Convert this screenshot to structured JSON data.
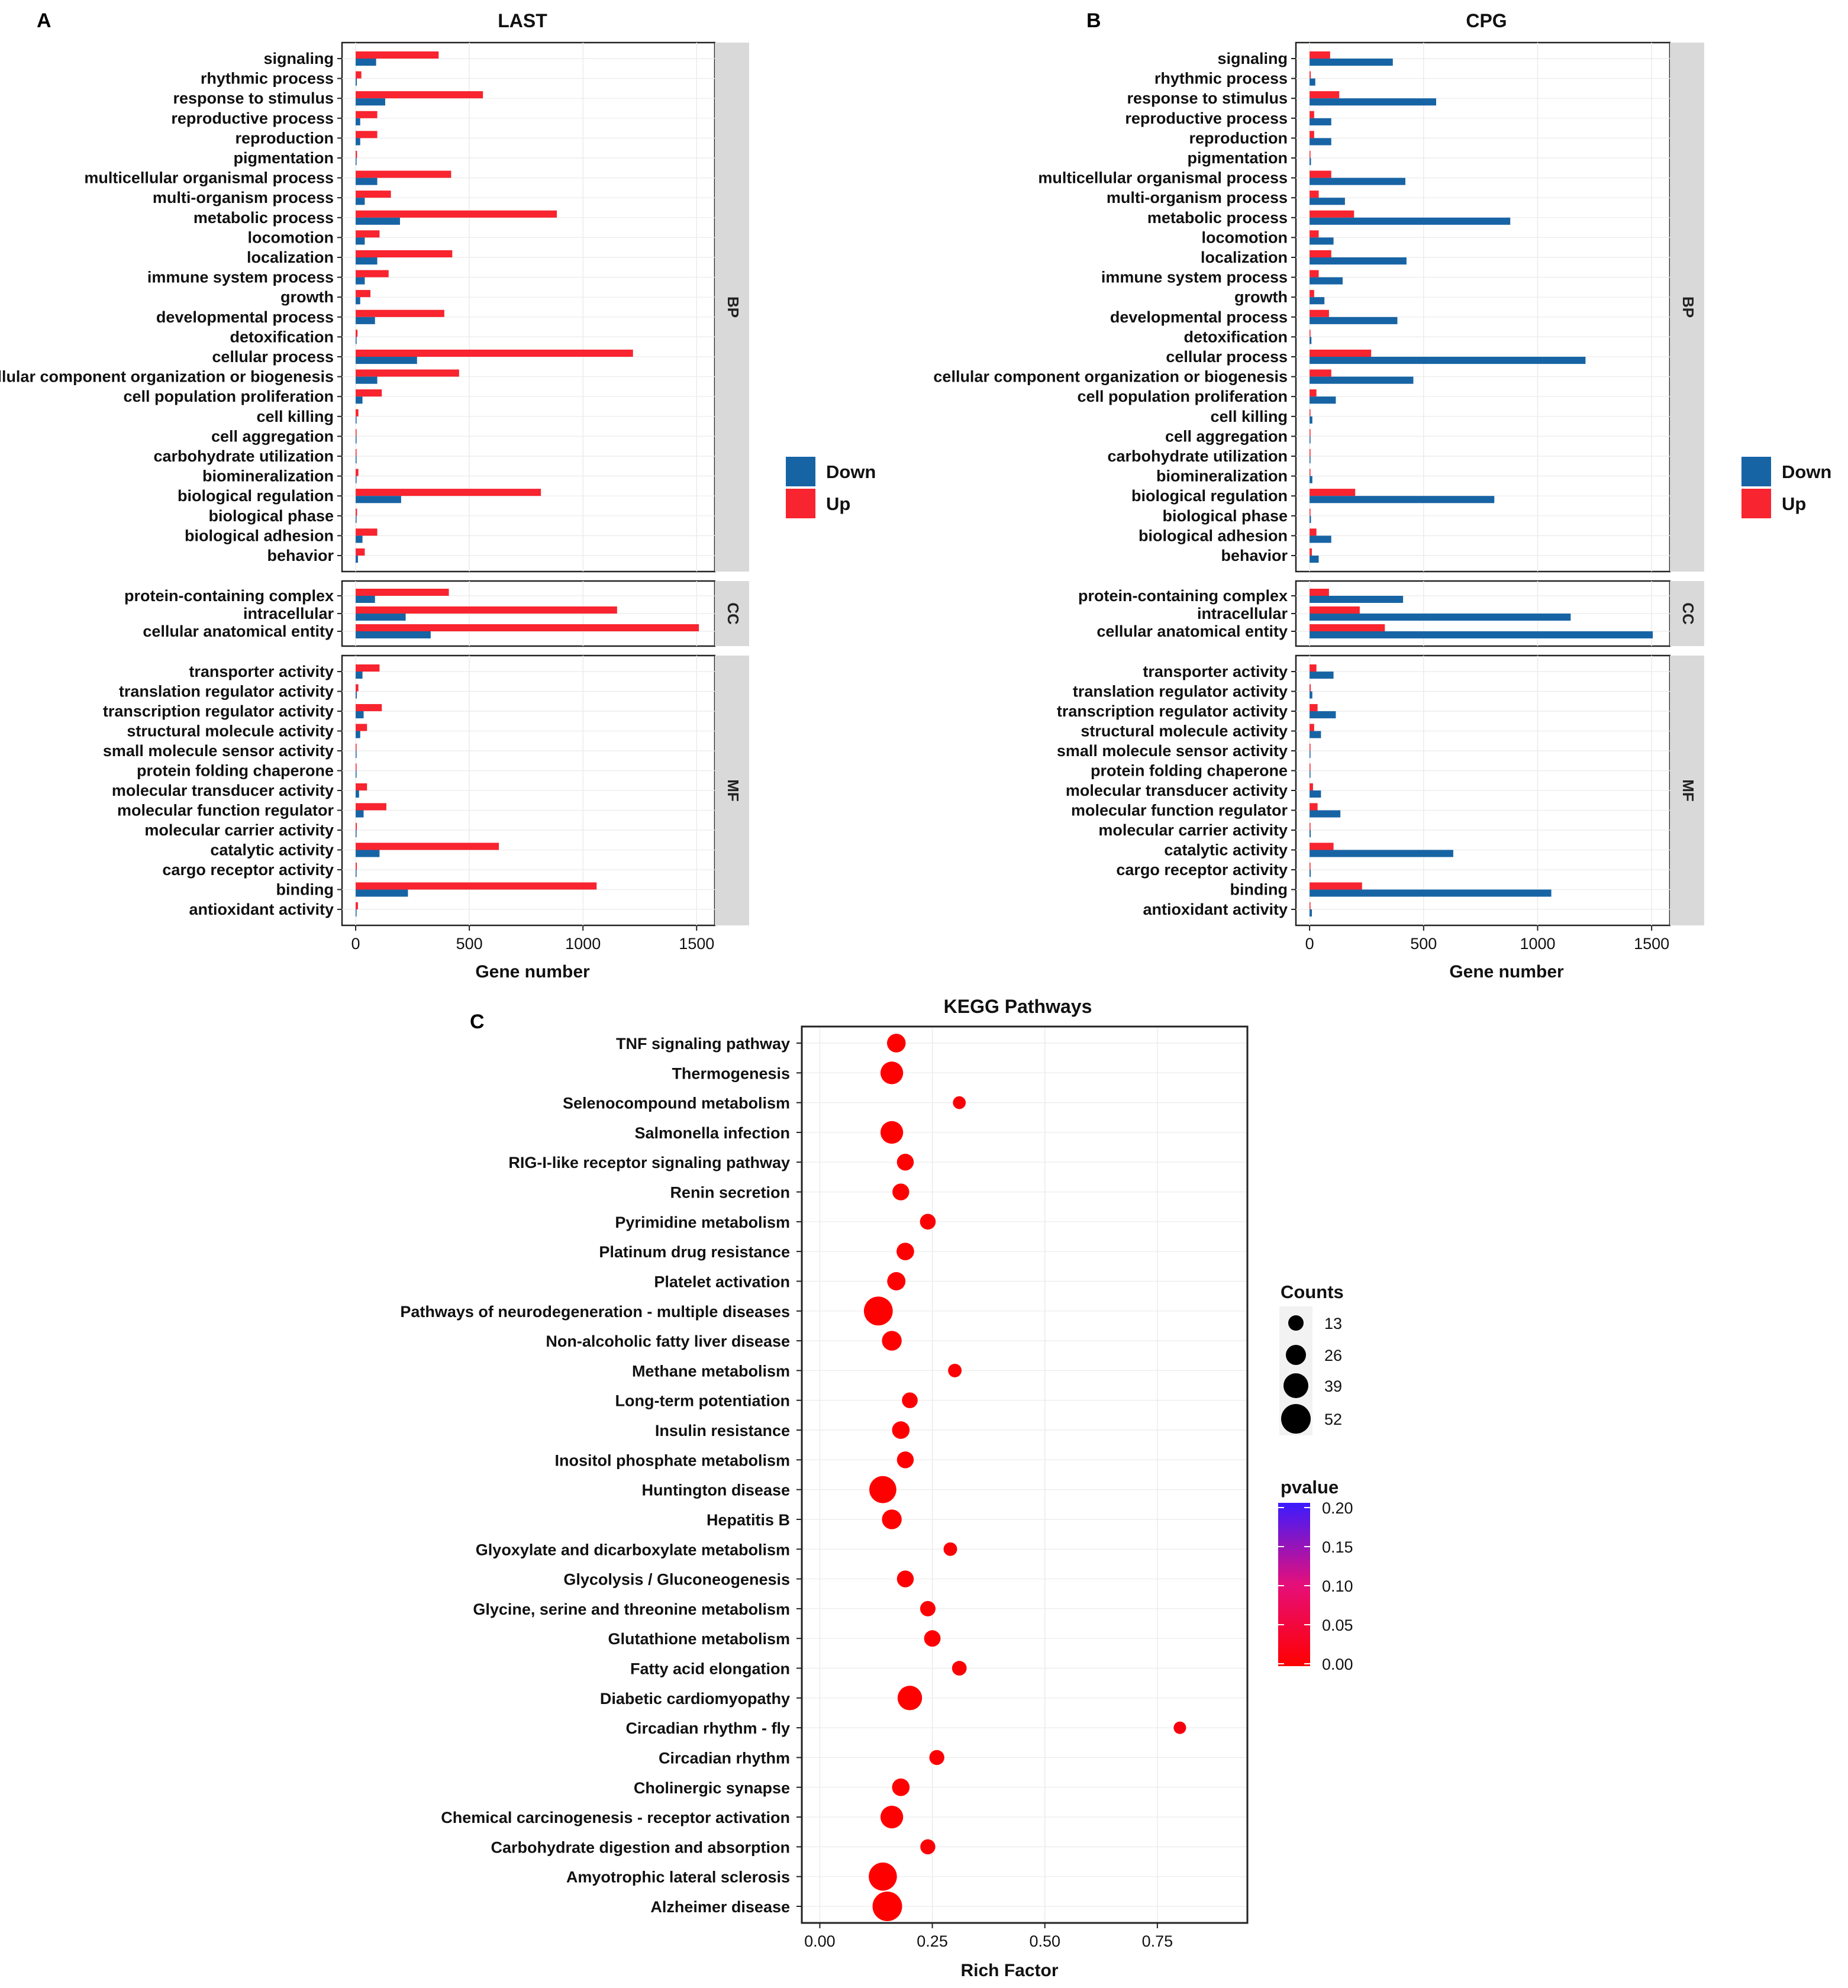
{
  "colors": {
    "up": "#F8242F",
    "down": "#1764A5",
    "strip": "#D9D9D9",
    "dot": "#F21B1B"
  },
  "chart_data": [
    {
      "panel": "A",
      "title": "LAST",
      "type": "bar",
      "orientation": "horizontal",
      "xlabel": "Gene number",
      "xlim": [
        -60,
        1580
      ],
      "xticks": [
        0,
        500,
        1000,
        1500
      ],
      "legend": {
        "position": "right",
        "entries": [
          "Down",
          "Up"
        ]
      },
      "facets": [
        {
          "name": "BP",
          "categories": [
            "signaling",
            "rhythmic process",
            "response to stimulus",
            "reproductive process",
            "reproduction",
            "pigmentation",
            "multicellular organismal process",
            "multi-organism process",
            "metabolic process",
            "locomotion",
            "localization",
            "immune system process",
            "growth",
            "developmental process",
            "detoxification",
            "cellular process",
            "cellular component organization or biogenesis",
            "cell population proliferation",
            "cell killing",
            "cell aggregation",
            "carbohydrate utilization",
            "biomineralization",
            "biological regulation",
            "biological phase",
            "biological adhesion",
            "behavior"
          ],
          "series": [
            {
              "name": "Up",
              "values": [
                365,
                25,
                560,
                95,
                95,
                6,
                420,
                155,
                885,
                105,
                425,
                145,
                65,
                390,
                8,
                1220,
                455,
                115,
                12,
                4,
                3,
                12,
                815,
                6,
                95,
                40
              ]
            },
            {
              "name": "Down",
              "values": [
                90,
                5,
                130,
                20,
                20,
                2,
                95,
                40,
                195,
                40,
                95,
                40,
                20,
                85,
                4,
                270,
                95,
                30,
                3,
                1,
                1,
                3,
                200,
                2,
                30,
                10
              ]
            }
          ]
        },
        {
          "name": "CC",
          "categories": [
            "protein-containing complex",
            "intracellular",
            "cellular anatomical entity"
          ],
          "series": [
            {
              "name": "Up",
              "values": [
                410,
                1150,
                1510
              ]
            },
            {
              "name": "Down",
              "values": [
                85,
                220,
                330
              ]
            }
          ]
        },
        {
          "name": "MF",
          "categories": [
            "transporter activity",
            "translation regulator activity",
            "transcription regulator activity",
            "structural molecule activity",
            "small molecule sensor activity",
            "protein folding chaperone",
            "molecular transducer activity",
            "molecular function regulator",
            "molecular carrier activity",
            "catalytic activity",
            "cargo receptor activity",
            "binding",
            "antioxidant activity"
          ],
          "series": [
            {
              "name": "Up",
              "values": [
                105,
                12,
                115,
                50,
                2,
                3,
                50,
                135,
                5,
                630,
                5,
                1060,
                10
              ]
            },
            {
              "name": "Down",
              "values": [
                30,
                5,
                35,
                20,
                1,
                1,
                15,
                35,
                2,
                105,
                2,
                230,
                3
              ]
            }
          ]
        }
      ]
    },
    {
      "panel": "B",
      "title": "CPG",
      "type": "bar",
      "orientation": "horizontal",
      "xlabel": "Gene number",
      "xlim": [
        -60,
        1580
      ],
      "xticks": [
        0,
        500,
        1000,
        1500
      ],
      "legend": {
        "position": "right",
        "entries": [
          "Down",
          "Up"
        ]
      },
      "facets": [
        {
          "name": "BP",
          "categories": [
            "signaling",
            "rhythmic process",
            "response to stimulus",
            "reproductive process",
            "reproduction",
            "pigmentation",
            "multicellular organismal process",
            "multi-organism process",
            "metabolic process",
            "locomotion",
            "localization",
            "immune system process",
            "growth",
            "developmental process",
            "detoxification",
            "cellular process",
            "cellular component organization or biogenesis",
            "cell population proliferation",
            "cell killing",
            "cell aggregation",
            "carbohydrate utilization",
            "biomineralization",
            "biological regulation",
            "biological phase",
            "biological adhesion",
            "behavior"
          ],
          "series": [
            {
              "name": "Up",
              "values": [
                90,
                5,
                130,
                20,
                20,
                2,
                95,
                40,
                195,
                40,
                95,
                40,
                20,
                85,
                4,
                270,
                95,
                30,
                3,
                1,
                1,
                3,
                200,
                2,
                30,
                10
              ]
            },
            {
              "name": "Down",
              "values": [
                365,
                25,
                555,
                95,
                95,
                6,
                420,
                155,
                880,
                105,
                425,
                145,
                65,
                385,
                8,
                1210,
                455,
                115,
                12,
                4,
                3,
                12,
                810,
                6,
                95,
                40
              ]
            }
          ]
        },
        {
          "name": "CC",
          "categories": [
            "protein-containing complex",
            "intracellular",
            "cellular anatomical entity"
          ],
          "series": [
            {
              "name": "Up",
              "values": [
                85,
                220,
                330
              ]
            },
            {
              "name": "Down",
              "values": [
                410,
                1145,
                1505
              ]
            }
          ]
        },
        {
          "name": "MF",
          "categories": [
            "transporter activity",
            "translation regulator activity",
            "transcription regulator activity",
            "structural molecule activity",
            "small molecule sensor activity",
            "protein folding chaperone",
            "molecular transducer activity",
            "molecular function regulator",
            "molecular carrier activity",
            "catalytic activity",
            "cargo receptor activity",
            "binding",
            "antioxidant activity"
          ],
          "series": [
            {
              "name": "Up",
              "values": [
                30,
                5,
                35,
                20,
                1,
                1,
                15,
                35,
                2,
                105,
                2,
                230,
                3
              ]
            },
            {
              "name": "Down",
              "values": [
                105,
                12,
                115,
                50,
                2,
                3,
                50,
                135,
                5,
                630,
                5,
                1060,
                10
              ]
            }
          ]
        }
      ]
    },
    {
      "panel": "C",
      "title": "KEGG Pathways",
      "type": "scatter",
      "xlabel": "Rich Factor",
      "ylabel": "",
      "xlim": [
        -0.04,
        0.95
      ],
      "xticks": [
        0.0,
        0.25,
        0.5,
        0.75
      ],
      "xtick_labels": [
        "0.00",
        "0.25",
        "0.50",
        "0.75"
      ],
      "categories": [
        "TNF signaling pathway",
        "Thermogenesis",
        "Selenocompound metabolism",
        "Salmonella infection",
        "RIG-I-like receptor signaling pathway",
        "Renin secretion",
        "Pyrimidine metabolism",
        "Platinum drug resistance",
        "Platelet activation",
        "Pathways of neurodegeneration - multiple diseases",
        "Non-alcoholic fatty liver disease",
        "Methane metabolism",
        "Long-term potentiation",
        "Insulin resistance",
        "Inositol phosphate metabolism",
        "Huntington disease",
        "Hepatitis B",
        "Glyoxylate and dicarboxylate metabolism",
        "Glycolysis / Gluconeogenesis",
        "Glycine, serine and threonine metabolism",
        "Glutathione metabolism",
        "Fatty acid elongation",
        "Diabetic cardiomyopathy",
        "Circadian rhythm - fly",
        "Circadian rhythm",
        "Cholinergic synapse",
        "Chemical carcinogenesis - receptor activation",
        "Carbohydrate digestion and absorption",
        "Amyotrophic lateral sclerosis",
        "Alzheimer disease"
      ],
      "rich_factor": [
        0.17,
        0.16,
        0.31,
        0.16,
        0.19,
        0.18,
        0.24,
        0.19,
        0.17,
        0.13,
        0.16,
        0.3,
        0.2,
        0.18,
        0.19,
        0.14,
        0.16,
        0.29,
        0.19,
        0.24,
        0.25,
        0.31,
        0.2,
        0.8,
        0.26,
        0.18,
        0.16,
        0.24,
        0.14,
        0.15
      ],
      "counts": [
        22,
        33,
        6,
        33,
        17,
        17,
        14,
        19,
        21,
        50,
        25,
        8,
        14,
        19,
        17,
        45,
        25,
        8,
        17,
        13,
        16,
        11,
        38,
        5,
        12,
        19,
        33,
        12,
        48,
        52
      ],
      "pvalue": [
        0.0,
        0.0,
        0.005,
        0.0,
        0.001,
        0.001,
        0.002,
        0.001,
        0.001,
        0.0,
        0.0,
        0.004,
        0.002,
        0.001,
        0.001,
        0.0,
        0.0,
        0.005,
        0.002,
        0.003,
        0.002,
        0.004,
        0.0,
        0.01,
        0.004,
        0.001,
        0.0,
        0.004,
        0.0,
        0.0
      ],
      "size_legend": {
        "title": "Counts",
        "values": [
          13,
          26,
          39,
          52
        ]
      },
      "color_legend": {
        "title": "pvalue",
        "ticks": [
          0.2,
          0.15,
          0.1,
          0.05,
          0.0
        ],
        "tick_labels": [
          "0.20",
          "0.15",
          "0.10",
          "0.05",
          "0.00"
        ],
        "low_color": "#FF0000",
        "high_color": "#3B1BFF"
      }
    }
  ]
}
